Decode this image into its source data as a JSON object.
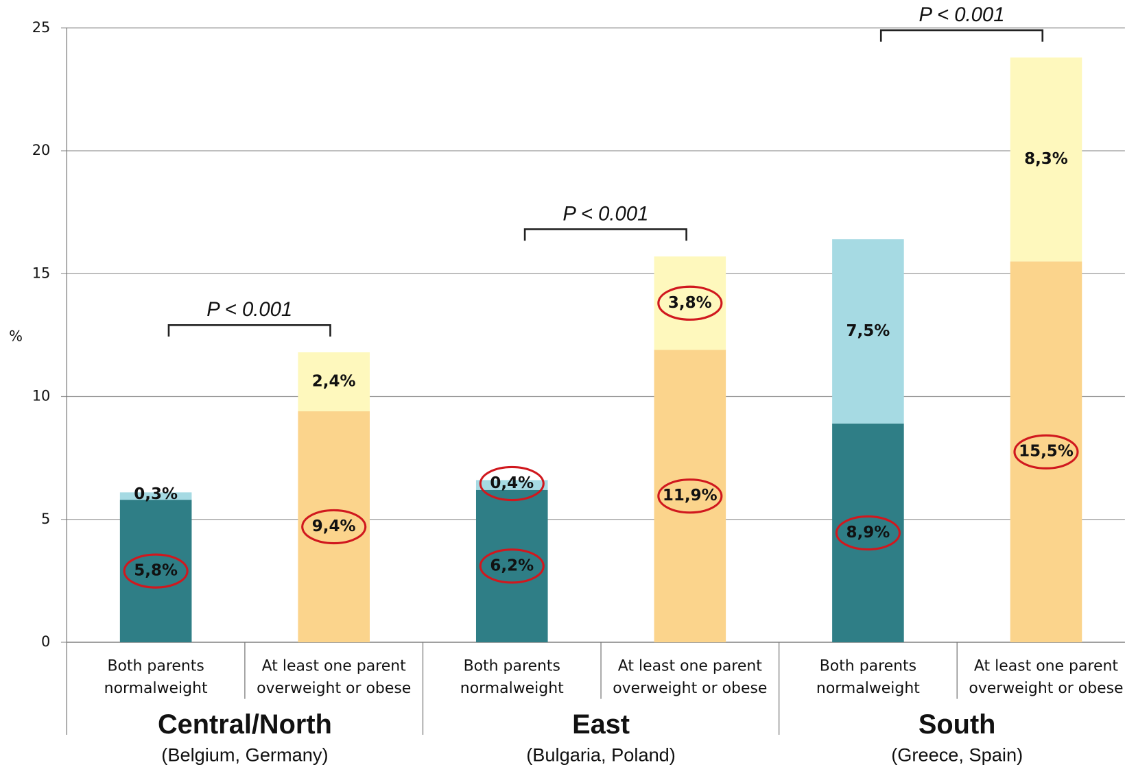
{
  "chart_data": {
    "type": "stacked_bar",
    "ylabel": "%",
    "ylim": [
      0,
      25
    ],
    "yticks": [
      0,
      5,
      10,
      15,
      20,
      25
    ],
    "grid": true,
    "categories": [
      [
        "Both parents",
        "normalweight"
      ],
      [
        "At least one parent",
        "overweight or obese"
      ],
      [
        "Both parents",
        "normalweight"
      ],
      [
        "At least one parent",
        "overweight or obese"
      ],
      [
        "Both parents",
        "normalweight"
      ],
      [
        "At least one parent",
        "overweight or obese"
      ]
    ],
    "groups": [
      {
        "name": "Central/North",
        "note": "(Belgium, Germany)"
      },
      {
        "name": "East",
        "note": "(Bulgaria, Poland)"
      },
      {
        "name": "South",
        "note": "(Greece, Spain)"
      }
    ],
    "series": [
      {
        "color": "#2f7e86",
        "values": [
          5.8,
          null,
          6.2,
          null,
          8.9,
          null
        ],
        "value_labels": [
          "5,8%",
          null,
          "6,2%",
          null,
          "8,9%",
          null
        ],
        "circled": [
          true,
          null,
          true,
          null,
          true,
          null
        ]
      },
      {
        "color": "#a6dae3",
        "values": [
          0.3,
          null,
          0.4,
          null,
          7.5,
          null
        ],
        "value_labels": [
          "0,3%",
          null,
          "0,4%",
          null,
          "7,5%",
          null
        ],
        "circled": [
          false,
          null,
          true,
          null,
          false,
          null
        ]
      },
      {
        "color": "#fbd48c",
        "values": [
          null,
          9.4,
          null,
          11.9,
          null,
          15.5
        ],
        "value_labels": [
          null,
          "9,4%",
          null,
          "11,9%",
          null,
          "15,5%"
        ],
        "circled": [
          null,
          true,
          null,
          true,
          null,
          true
        ]
      },
      {
        "color": "#fef8bd",
        "values": [
          null,
          2.4,
          null,
          3.8,
          null,
          8.3
        ],
        "value_labels": [
          null,
          "2,4%",
          null,
          "3,8%",
          null,
          "8,3%"
        ],
        "circled": [
          null,
          false,
          null,
          true,
          null,
          false
        ]
      }
    ],
    "annotations": [
      "P < 0.001",
      "P < 0.001",
      "P < 0.001"
    ]
  }
}
